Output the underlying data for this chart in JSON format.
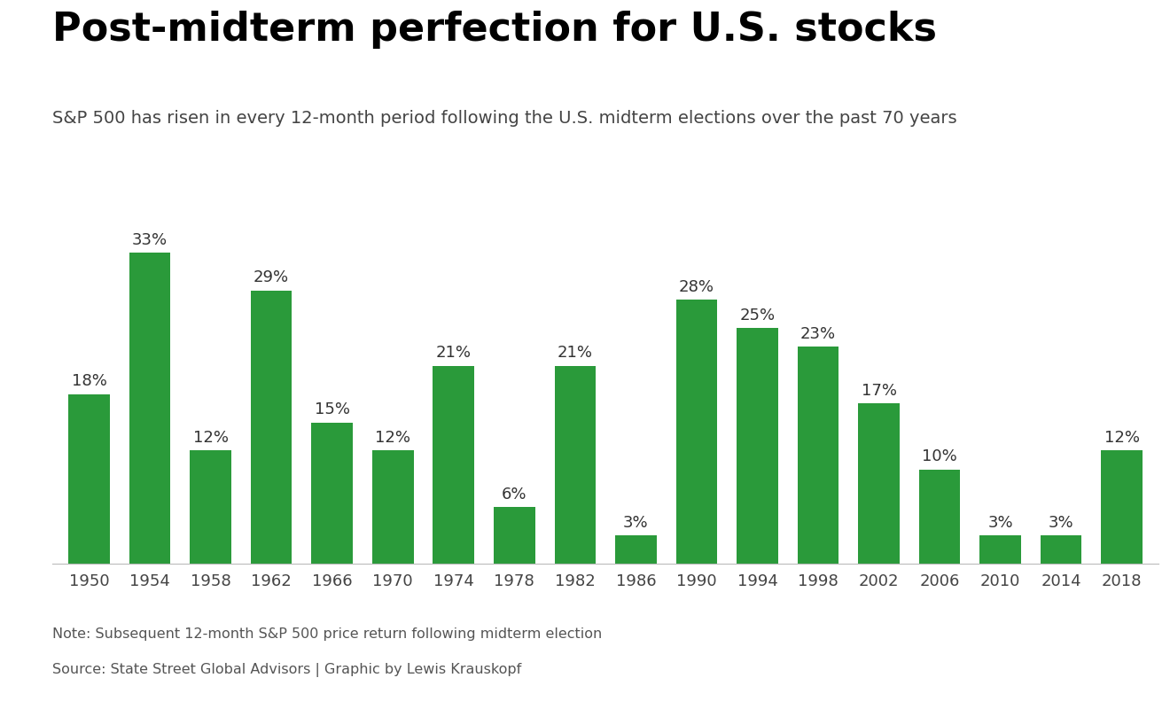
{
  "title": "Post-midterm perfection for U.S. stocks",
  "subtitle": "S&P 500 has risen in every 12-month period following the U.S. midterm elections over the past 70 years",
  "note": "Note: Subsequent 12-month S&P 500 price return following midterm election",
  "source": "Source: State Street Global Advisors | Graphic by Lewis Krauskopf",
  "categories": [
    1950,
    1954,
    1958,
    1962,
    1966,
    1970,
    1974,
    1978,
    1982,
    1986,
    1990,
    1994,
    1998,
    2002,
    2006,
    2010,
    2014,
    2018
  ],
  "values": [
    18,
    33,
    12,
    29,
    15,
    12,
    21,
    6,
    21,
    3,
    28,
    25,
    23,
    17,
    10,
    3,
    3,
    12
  ],
  "bar_color": "#2a9a3a",
  "background_color": "#ffffff",
  "title_fontsize": 32,
  "subtitle_fontsize": 14,
  "label_fontsize": 13,
  "tick_fontsize": 13,
  "note_fontsize": 11.5,
  "ylim": [
    0,
    38
  ],
  "bar_width": 0.68
}
